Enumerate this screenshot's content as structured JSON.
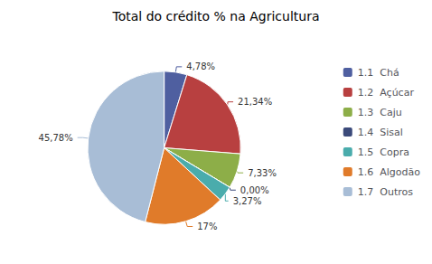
{
  "chart_data": {
    "type": "pie",
    "title": "Total do crédito % na Agricultura",
    "categories": [
      "1.1  Chá",
      "1.2  Açúcar",
      "1.3  Caju",
      "1.4  Sisal",
      "1.5  Copra",
      "1.6  Algodão",
      "1.7  Outros"
    ],
    "values": [
      4.78,
      21.34,
      7.33,
      0.0,
      3.27,
      17.0,
      45.78
    ],
    "value_labels": [
      "4,78%",
      "21,34%",
      "7,33%",
      "0,00%",
      "3,27%",
      "17%",
      "45,78%"
    ],
    "colors": [
      "#4F5FA0",
      "#B84040",
      "#8DAE48",
      "#3B4A7A",
      "#4AACAC",
      "#E07B2A",
      "#A8BDD6"
    ],
    "legend": "right",
    "data_labels": true
  }
}
